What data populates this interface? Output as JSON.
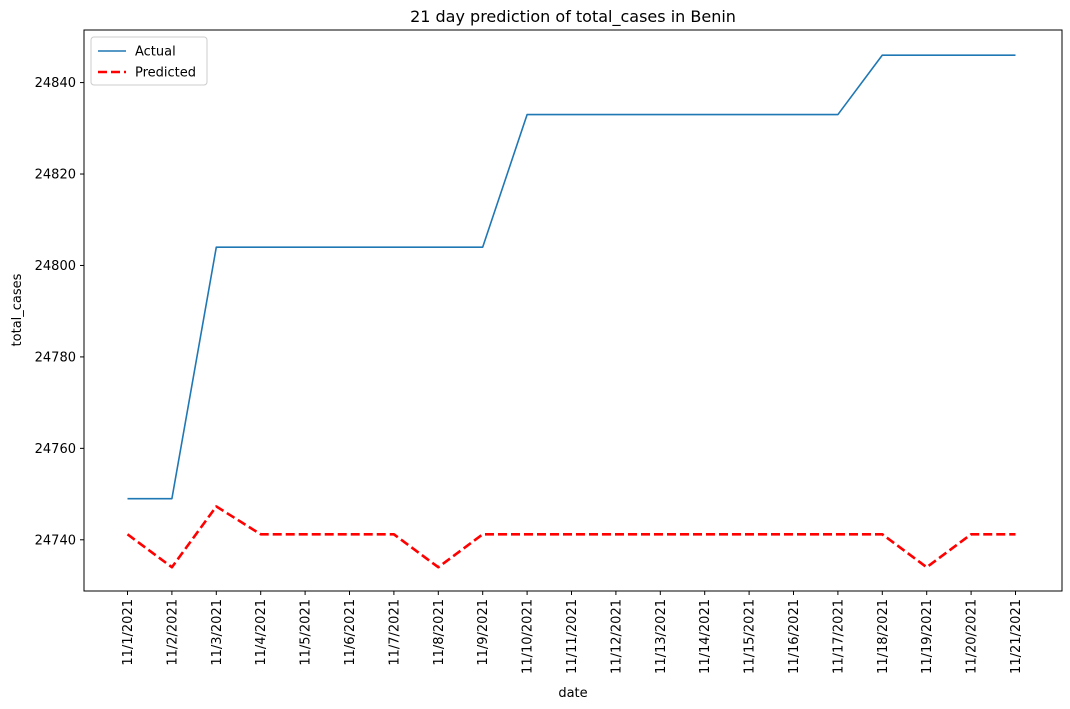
{
  "chart_data": {
    "type": "line",
    "title": "21 day prediction of total_cases in Benin",
    "xlabel": "date",
    "ylabel": "total_cases",
    "x": [
      "11/1/2021",
      "11/2/2021",
      "11/3/2021",
      "11/4/2021",
      "11/5/2021",
      "11/6/2021",
      "11/7/2021",
      "11/8/2021",
      "11/9/2021",
      "11/10/2021",
      "11/11/2021",
      "11/12/2021",
      "11/13/2021",
      "11/14/2021",
      "11/15/2021",
      "11/16/2021",
      "11/17/2021",
      "11/18/2021",
      "11/19/2021",
      "11/20/2021",
      "11/21/2021"
    ],
    "yticks": [
      24740,
      24760,
      24780,
      24800,
      24820,
      24840
    ],
    "ylim": [
      24728.8,
      24851.5
    ],
    "series": [
      {
        "name": "Actual",
        "color": "#1f77b4",
        "style": "solid",
        "values": [
          24749,
          24749,
          24804,
          24804,
          24804,
          24804,
          24804,
          24804,
          24804,
          24833,
          24833,
          24833,
          24833,
          24833,
          24833,
          24833,
          24833,
          24846,
          24846,
          24846,
          24846
        ]
      },
      {
        "name": "Predicted",
        "color": "#ff0000",
        "style": "dashed",
        "values": [
          24741.2,
          24734,
          24747.3,
          24741.2,
          24741.2,
          24741.2,
          24741.2,
          24734,
          24741.2,
          24741.2,
          24741.2,
          24741.2,
          24741.2,
          24741.2,
          24741.2,
          24741.2,
          24741.2,
          24741.2,
          24734,
          24741.2,
          24741.2
        ]
      }
    ],
    "grid": false,
    "legend_position": "top-left"
  }
}
